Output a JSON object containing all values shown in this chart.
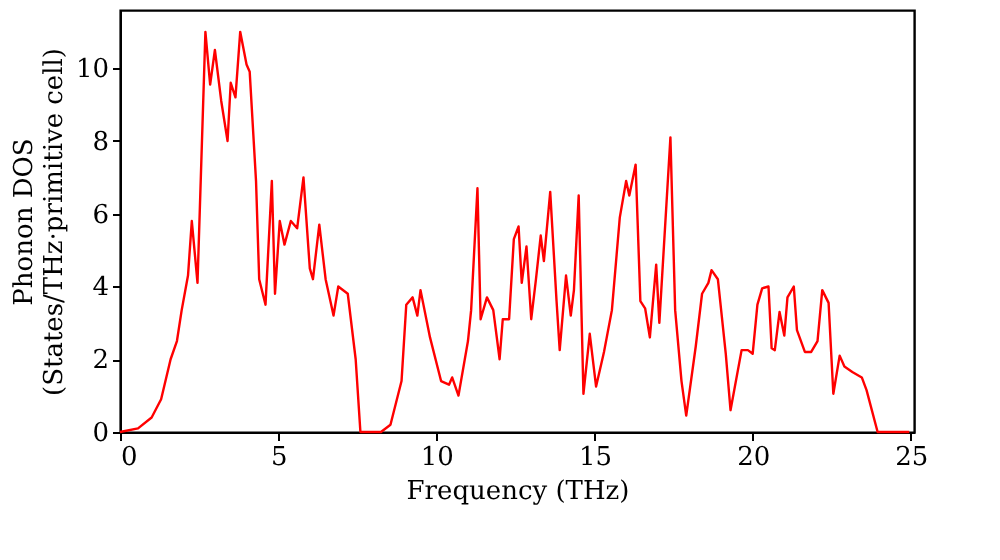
{
  "chart_data": {
    "type": "line",
    "xlabel": "Frequency (THz)",
    "ylabel": "Phonon DOS\n(States/THz·primitive cell)",
    "xlim": [
      0,
      25.1
    ],
    "ylim": [
      0,
      11.6
    ],
    "xticks": [
      0,
      5,
      10,
      15,
      20,
      25
    ],
    "yticks": [
      0,
      2,
      4,
      6,
      8,
      10
    ],
    "grid": false,
    "line_style": "solid",
    "marker": "none",
    "series": [
      {
        "color": "#ff0000",
        "x": [
          0,
          0.57,
          1.0,
          1.3,
          1.6,
          1.8,
          1.95,
          2.15,
          2.27,
          2.45,
          2.7,
          2.85,
          3.0,
          3.2,
          3.4,
          3.5,
          3.65,
          3.8,
          4.0,
          4.1,
          4.3,
          4.4,
          4.6,
          4.8,
          4.9,
          5.05,
          5.2,
          5.4,
          5.6,
          5.8,
          6.0,
          6.1,
          6.3,
          6.5,
          6.75,
          6.9,
          7.2,
          7.45,
          7.6,
          8.25,
          8.55,
          8.9,
          9.05,
          9.25,
          9.4,
          9.5,
          9.8,
          10.15,
          10.4,
          10.5,
          10.7,
          11.0,
          11.1,
          11.3,
          11.4,
          11.6,
          11.8,
          12.0,
          12.1,
          12.3,
          12.45,
          12.6,
          12.7,
          12.85,
          13.0,
          13.15,
          13.3,
          13.4,
          13.6,
          13.8,
          13.9,
          14.1,
          14.25,
          14.35,
          14.5,
          14.65,
          14.85,
          15.05,
          15.3,
          15.55,
          15.8,
          16.0,
          16.1,
          16.3,
          16.45,
          16.6,
          16.75,
          16.95,
          17.05,
          17.4,
          17.55,
          17.75,
          17.9,
          18.2,
          18.4,
          18.6,
          18.7,
          18.9,
          19.15,
          19.3,
          19.65,
          19.85,
          20.0,
          20.15,
          20.3,
          20.5,
          20.6,
          20.7,
          20.85,
          21.0,
          21.1,
          21.3,
          21.4,
          21.65,
          21.85,
          22.05,
          22.2,
          22.4,
          22.55,
          22.75,
          22.9,
          23.15,
          23.45,
          23.6,
          23.95,
          24.95
        ],
        "values": [
          0,
          0.1,
          0.4,
          0.9,
          2.0,
          2.5,
          3.35,
          4.3,
          5.8,
          4.1,
          11.0,
          9.55,
          10.5,
          9.1,
          8.0,
          9.6,
          9.2,
          11.0,
          10.1,
          9.9,
          6.9,
          4.2,
          3.5,
          6.9,
          3.8,
          5.8,
          5.15,
          5.8,
          5.6,
          7.0,
          4.5,
          4.2,
          5.7,
          4.2,
          3.2,
          4.0,
          3.8,
          2.0,
          0,
          0,
          0.2,
          1.4,
          3.5,
          3.7,
          3.2,
          3.9,
          2.6,
          1.4,
          1.3,
          1.5,
          1.0,
          2.5,
          3.35,
          6.7,
          3.1,
          3.7,
          3.35,
          2.0,
          3.1,
          3.1,
          5.3,
          5.65,
          4.1,
          5.1,
          3.1,
          4.2,
          5.4,
          4.7,
          6.6,
          3.6,
          2.25,
          4.3,
          3.2,
          3.9,
          6.5,
          1.05,
          2.7,
          1.25,
          2.2,
          3.35,
          5.9,
          6.9,
          6.5,
          7.35,
          3.6,
          3.4,
          2.6,
          4.6,
          3.0,
          8.1,
          3.35,
          1.4,
          0.45,
          2.35,
          3.8,
          4.1,
          4.45,
          4.2,
          2.15,
          0.6,
          2.25,
          2.25,
          2.15,
          3.5,
          3.95,
          4.0,
          2.3,
          2.25,
          3.3,
          2.65,
          3.7,
          4.0,
          2.8,
          2.2,
          2.2,
          2.5,
          3.9,
          3.55,
          1.05,
          2.1,
          1.8,
          1.65,
          1.5,
          1.15,
          0,
          0
        ]
      }
    ]
  }
}
